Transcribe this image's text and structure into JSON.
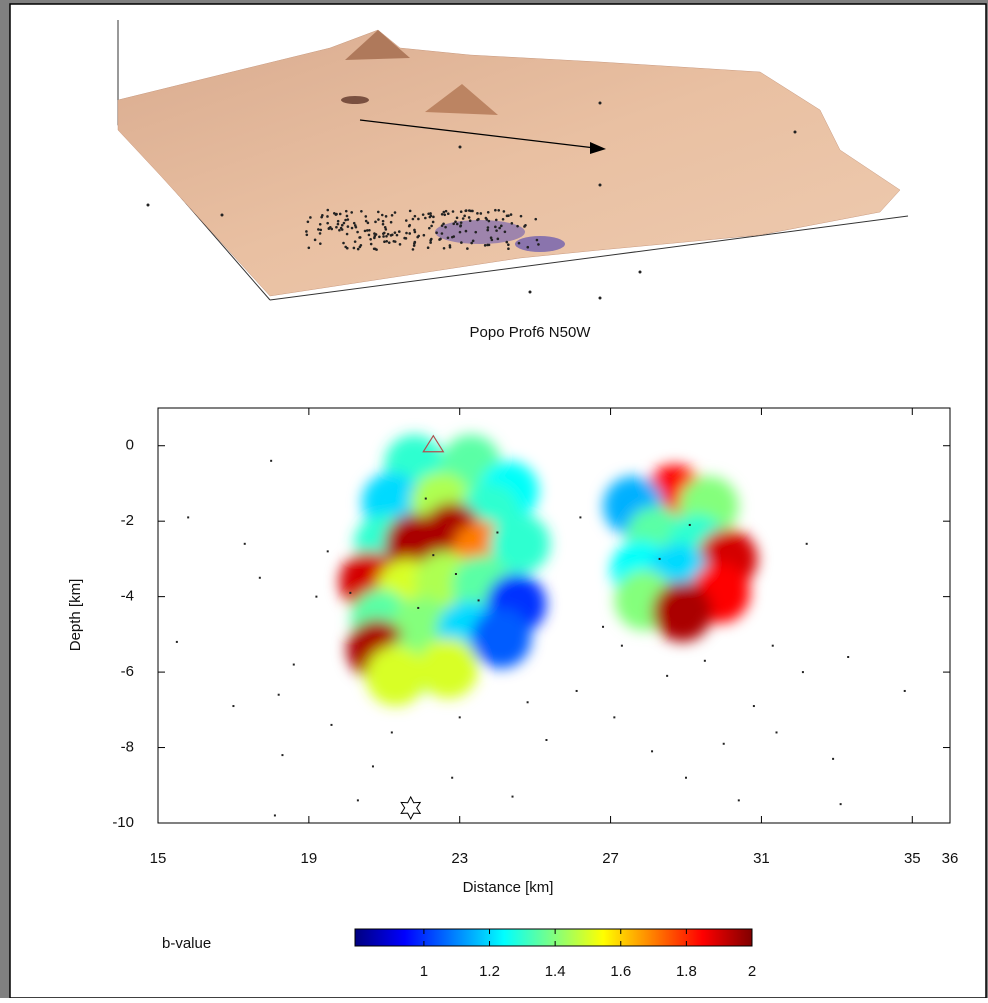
{
  "chart_data": [
    {
      "type": "surface3d",
      "title": "Popo Prof6 N50W"
    },
    {
      "type": "heatmap",
      "xlabel": "Distance [km]",
      "ylabel": "Depth [km]",
      "xlim": [
        15,
        36
      ],
      "xticks": [
        15,
        19,
        23,
        27,
        31,
        35,
        36
      ],
      "ylim": [
        -10,
        1
      ],
      "yticks": [
        -10,
        -8,
        -6,
        -4,
        -2,
        0
      ],
      "cells": {
        "x": [
          21.8,
          23.3,
          24.3,
          21.2,
          22.5,
          23.8,
          21,
          21.8,
          22.8,
          23.6,
          24.6,
          20.6,
          21.6,
          22.6,
          23.6,
          24.5,
          20.9,
          22,
          23.2,
          24.1,
          20.8,
          21.8,
          22.7,
          21.3,
          28.7,
          27.6,
          29.6,
          28.2,
          29.3,
          30.1,
          27.8,
          28.8,
          29.9,
          27.9,
          28.9
        ],
        "y": [
          -0.5,
          -0.5,
          -1.2,
          -1.5,
          -1.5,
          -1.8,
          -2.6,
          -2.6,
          -2.3,
          -2.8,
          -2.6,
          -3.6,
          -3.8,
          -3.6,
          -3.7,
          -4.2,
          -4.6,
          -4.8,
          -4.9,
          -5.1,
          -5.4,
          -5.8,
          -5.9,
          -6.1,
          -1.3,
          -1.6,
          -1.6,
          -2.4,
          -2.6,
          -3,
          -3.3,
          -3.4,
          -3.9,
          -4.1,
          -4.4
        ],
        "values": [
          1.3,
          1.35,
          1.25,
          1.2,
          1.45,
          1.3,
          1.3,
          1.95,
          1.95,
          1.7,
          1.3,
          1.9,
          1.5,
          1.45,
          1.35,
          1.0,
          1.35,
          1.4,
          1.2,
          1.05,
          1.95,
          1.4,
          1.5,
          1.5,
          1.85,
          1.15,
          1.4,
          1.35,
          1.3,
          1.9,
          1.25,
          1.2,
          1.85,
          1.4,
          1.95
        ]
      },
      "quakes": {
        "x": [
          15.5,
          15.8,
          17,
          17.3,
          17.7,
          18,
          18.3,
          18.2,
          18.6,
          19.2,
          19.5,
          19.6,
          20.1,
          20.3,
          20.7,
          21.2,
          22.8,
          23,
          24.4,
          24.8,
          25.3,
          26.1,
          26.2,
          26.8,
          27.1,
          27.3,
          28.1,
          28.5,
          29,
          29.5,
          30,
          30.4,
          30.8,
          31.3,
          31.4,
          32.1,
          32.2,
          32.9,
          33.3,
          34.8,
          33.1,
          18.1,
          22.3,
          22.9,
          23.5,
          21.9,
          28.3,
          29.1,
          22.1,
          24
        ],
        "y": [
          -5.2,
          -1.9,
          -6.9,
          -2.6,
          -3.5,
          -0.4,
          -8.2,
          -6.6,
          -5.8,
          -4,
          -2.8,
          -7.4,
          -3.9,
          -9.4,
          -8.5,
          -7.6,
          -8.8,
          -7.2,
          -9.3,
          -6.8,
          -7.8,
          -6.5,
          -1.9,
          -4.8,
          -7.2,
          -5.3,
          -8.1,
          -6.1,
          -8.8,
          -5.7,
          -7.9,
          -9.4,
          -6.9,
          -5.3,
          -7.6,
          -6,
          -2.6,
          -8.3,
          -5.6,
          -6.5,
          -9.5,
          -9.8,
          -2.9,
          -3.4,
          -4.1,
          -4.3,
          -3,
          -2.1,
          -1.4,
          -2.3
        ]
      },
      "summit": {
        "x": 22.3,
        "y": 0
      },
      "star": {
        "x": 21.7,
        "y": -9.6
      },
      "colorbar": {
        "label": "b-value",
        "clim": [
          0.79,
          2
        ],
        "ticks": [
          1,
          1.2,
          1.4,
          1.6,
          1.8,
          2
        ]
      }
    }
  ]
}
